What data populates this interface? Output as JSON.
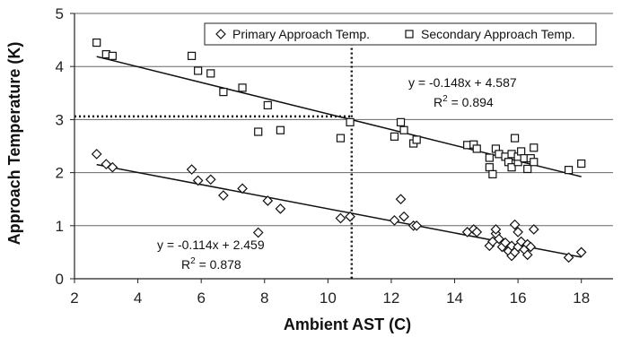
{
  "chart_data": {
    "type": "scatter",
    "xlabel": "Ambient AST (C)",
    "ylabel": "Approach Temperature (K)",
    "xlim": [
      2,
      19
    ],
    "ylim": [
      0,
      5
    ],
    "x_ticks": [
      2,
      4,
      6,
      8,
      10,
      12,
      14,
      16,
      18
    ],
    "y_ticks": [
      0,
      1,
      2,
      3,
      4,
      5
    ],
    "grid": "horizontal",
    "legend_position": "top-right",
    "series": [
      {
        "name": "Primary Approach Temp.",
        "marker": "diamond",
        "points": [
          [
            2.7,
            2.35
          ],
          [
            3.0,
            2.16
          ],
          [
            3.2,
            2.1
          ],
          [
            5.7,
            2.06
          ],
          [
            5.9,
            1.85
          ],
          [
            6.3,
            1.87
          ],
          [
            6.7,
            1.57
          ],
          [
            7.3,
            1.7
          ],
          [
            7.8,
            0.87
          ],
          [
            8.1,
            1.47
          ],
          [
            8.5,
            1.32
          ],
          [
            10.4,
            1.14
          ],
          [
            10.7,
            1.17
          ],
          [
            12.1,
            1.1
          ],
          [
            12.3,
            1.5
          ],
          [
            12.4,
            1.17
          ],
          [
            12.7,
            1.0
          ],
          [
            12.8,
            1.0
          ],
          [
            14.4,
            0.88
          ],
          [
            14.6,
            0.93
          ],
          [
            14.7,
            0.88
          ],
          [
            15.1,
            0.62
          ],
          [
            15.2,
            0.7
          ],
          [
            15.3,
            0.85
          ],
          [
            15.3,
            0.93
          ],
          [
            15.4,
            0.75
          ],
          [
            15.5,
            0.6
          ],
          [
            15.6,
            0.68
          ],
          [
            15.7,
            0.52
          ],
          [
            15.8,
            0.43
          ],
          [
            15.8,
            0.62
          ],
          [
            15.9,
            0.5
          ],
          [
            15.9,
            1.02
          ],
          [
            16.0,
            0.6
          ],
          [
            16.0,
            0.88
          ],
          [
            16.1,
            0.7
          ],
          [
            16.2,
            0.55
          ],
          [
            16.3,
            0.45
          ],
          [
            16.3,
            0.65
          ],
          [
            16.4,
            0.6
          ],
          [
            16.5,
            0.93
          ],
          [
            17.6,
            0.4
          ],
          [
            18.0,
            0.5
          ]
        ]
      },
      {
        "name": "Secondary Approach Temp.",
        "marker": "square",
        "points": [
          [
            2.7,
            4.45
          ],
          [
            3.0,
            4.23
          ],
          [
            3.2,
            4.2
          ],
          [
            5.7,
            4.2
          ],
          [
            5.9,
            3.92
          ],
          [
            6.3,
            3.87
          ],
          [
            6.7,
            3.52
          ],
          [
            7.3,
            3.6
          ],
          [
            7.8,
            2.77
          ],
          [
            8.1,
            3.27
          ],
          [
            8.5,
            2.8
          ],
          [
            10.4,
            2.65
          ],
          [
            10.7,
            2.95
          ],
          [
            12.1,
            2.68
          ],
          [
            12.3,
            2.95
          ],
          [
            12.4,
            2.8
          ],
          [
            12.7,
            2.55
          ],
          [
            12.8,
            2.62
          ],
          [
            14.4,
            2.52
          ],
          [
            14.6,
            2.53
          ],
          [
            14.7,
            2.45
          ],
          [
            15.1,
            2.1
          ],
          [
            15.1,
            2.28
          ],
          [
            15.2,
            1.97
          ],
          [
            15.3,
            2.45
          ],
          [
            15.4,
            2.35
          ],
          [
            15.6,
            2.3
          ],
          [
            15.7,
            2.2
          ],
          [
            15.8,
            2.1
          ],
          [
            15.8,
            2.35
          ],
          [
            15.9,
            2.65
          ],
          [
            16.0,
            2.2
          ],
          [
            16.0,
            2.3
          ],
          [
            16.1,
            2.4
          ],
          [
            16.2,
            2.27
          ],
          [
            16.3,
            2.07
          ],
          [
            16.4,
            2.27
          ],
          [
            16.5,
            2.47
          ],
          [
            16.5,
            2.2
          ],
          [
            17.6,
            2.05
          ],
          [
            18.0,
            2.17
          ]
        ]
      }
    ],
    "trendlines": [
      {
        "series": "Secondary Approach Temp.",
        "slope": -0.148,
        "intercept": 4.587,
        "x_range": [
          2.7,
          18.0
        ],
        "equation": "y = -0.148x + 4.587",
        "r2_prefix": "R",
        "r2_suffix": " = 0.894"
      },
      {
        "series": "Primary Approach Temp.",
        "slope": -0.114,
        "intercept": 2.459,
        "x_range": [
          2.7,
          18.0
        ],
        "equation": "y = -0.114x + 2.459",
        "r2_prefix": "R",
        "r2_suffix": " = 0.878"
      }
    ],
    "reference_lines": {
      "vertical_x": 10.75,
      "horizontal_y": 3.06,
      "style": "dotted"
    }
  }
}
